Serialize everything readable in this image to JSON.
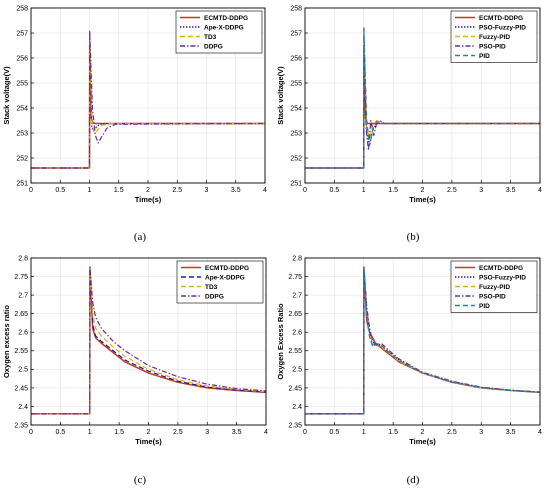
{
  "chart_data": [
    {
      "panel": "(a)",
      "type": "line",
      "xlabel": "Time(s)",
      "ylabel": "Stack voltage(V)",
      "xlim": [
        0,
        4
      ],
      "ylim": [
        251,
        258
      ],
      "xticks": [
        0,
        0.5,
        1,
        1.5,
        2,
        2.5,
        3,
        3.5,
        4
      ],
      "yticks": [
        251,
        252,
        253,
        254,
        255,
        256,
        257,
        258
      ],
      "grid": true,
      "legend_position": "top-right",
      "series": [
        {
          "name": "ECMTD-DDPG",
          "color": "#c0392b",
          "dash": "solid",
          "x": [
            0,
            1,
            1.003,
            1.03,
            1.06,
            1.1,
            1.15,
            1.3,
            4
          ],
          "y": [
            251.6,
            251.6,
            256.5,
            253.6,
            253.4,
            253.38,
            253.38,
            253.38,
            253.38
          ]
        },
        {
          "name": "Ape-X-DDPG",
          "color": "#1a1aa8",
          "dash": "dot",
          "x": [
            0,
            1,
            1.003,
            1.04,
            1.08,
            1.12,
            1.18,
            1.3,
            4
          ],
          "y": [
            251.6,
            251.6,
            256.8,
            253.2,
            253.1,
            253.25,
            253.35,
            253.38,
            253.38
          ]
        },
        {
          "name": "TD3",
          "color": "#e0b000",
          "dash": "dash",
          "x": [
            0,
            1,
            1.003,
            1.04,
            1.08,
            1.13,
            1.2,
            1.35,
            4
          ],
          "y": [
            251.6,
            251.6,
            257.0,
            253.5,
            253.0,
            253.1,
            253.3,
            253.38,
            253.38
          ]
        },
        {
          "name": "DDPG",
          "color": "#6a2a9a",
          "dash": "dashdot",
          "x": [
            0,
            1,
            1.003,
            1.05,
            1.1,
            1.15,
            1.22,
            1.3,
            1.45,
            4
          ],
          "y": [
            251.6,
            251.6,
            257.1,
            254.0,
            252.9,
            252.6,
            252.9,
            253.2,
            253.35,
            253.38
          ]
        }
      ]
    },
    {
      "panel": "(b)",
      "type": "line",
      "xlabel": "Time(s)",
      "ylabel": "Stack voltage(V)",
      "xlim": [
        0,
        4
      ],
      "ylim": [
        251,
        258
      ],
      "xticks": [
        0,
        0.5,
        1,
        1.5,
        2,
        2.5,
        3,
        3.5,
        4
      ],
      "yticks": [
        251,
        252,
        253,
        254,
        255,
        256,
        257,
        258
      ],
      "grid": true,
      "legend_position": "top-right",
      "series": [
        {
          "name": "ECMTD-DDPG",
          "color": "#c0392b",
          "dash": "solid",
          "x": [
            0,
            1,
            1.003,
            1.03,
            1.06,
            1.1,
            4
          ],
          "y": [
            251.6,
            251.6,
            256.5,
            253.6,
            253.38,
            253.38,
            253.38
          ]
        },
        {
          "name": "PSO-Fuzzy-PID",
          "color": "#1a1aa8",
          "dash": "dot",
          "x": [
            0,
            1,
            1.003,
            1.05,
            1.1,
            1.15,
            1.2,
            1.27,
            1.35,
            4
          ],
          "y": [
            251.6,
            251.6,
            256.9,
            253.0,
            252.5,
            253.1,
            253.3,
            253.5,
            253.38,
            253.38
          ]
        },
        {
          "name": "Fuzzy-PID",
          "color": "#e0b000",
          "dash": "dash",
          "x": [
            0,
            1,
            1.003,
            1.05,
            1.1,
            1.15,
            1.22,
            1.3,
            4
          ],
          "y": [
            251.6,
            251.6,
            256.6,
            253.2,
            252.8,
            253.3,
            253.5,
            253.38,
            253.38
          ]
        },
        {
          "name": "PSO-PID",
          "color": "#6a2a9a",
          "dash": "dashdot",
          "x": [
            0,
            1,
            1.003,
            1.04,
            1.08,
            1.12,
            1.17,
            1.22,
            1.3,
            4
          ],
          "y": [
            251.6,
            251.6,
            257.2,
            253.2,
            252.3,
            253.5,
            252.9,
            253.4,
            253.38,
            253.38
          ]
        },
        {
          "name": "PID",
          "color": "#1a8a9a",
          "dash": "dash",
          "x": [
            0,
            1,
            1.003,
            1.05,
            1.1,
            1.16,
            1.22,
            1.3,
            4
          ],
          "y": [
            251.6,
            251.6,
            257.0,
            253.5,
            252.5,
            253.2,
            253.45,
            253.38,
            253.38
          ]
        }
      ]
    },
    {
      "panel": "(c)",
      "type": "line",
      "xlabel": "Time(s)",
      "ylabel": "Oxygen excess ratio",
      "xlim": [
        0,
        4
      ],
      "ylim": [
        2.35,
        2.8
      ],
      "xticks": [
        0,
        0.5,
        1,
        1.5,
        2,
        2.5,
        3,
        3.5,
        4
      ],
      "yticks": [
        2.35,
        2.4,
        2.45,
        2.5,
        2.55,
        2.6,
        2.65,
        2.7,
        2.75,
        2.8
      ],
      "grid": true,
      "legend_position": "top-right",
      "series": [
        {
          "name": "ECMTD-DDPG",
          "color": "#c0392b",
          "dash": "solid",
          "x": [
            0,
            1,
            1.003,
            1.05,
            1.1,
            1.2,
            1.4,
            1.6,
            2,
            2.5,
            3,
            3.5,
            4
          ],
          "y": [
            2.38,
            2.38,
            2.775,
            2.61,
            2.585,
            2.57,
            2.545,
            2.52,
            2.49,
            2.465,
            2.45,
            2.443,
            2.438
          ]
        },
        {
          "name": "Ape-X-DDPG",
          "color": "#1a1aa8",
          "dash": "dash",
          "x": [
            0,
            1,
            1.003,
            1.05,
            1.1,
            1.2,
            1.4,
            1.6,
            2,
            2.5,
            3,
            3.5,
            4
          ],
          "y": [
            2.38,
            2.38,
            2.775,
            2.62,
            2.59,
            2.575,
            2.55,
            2.525,
            2.495,
            2.468,
            2.452,
            2.444,
            2.439
          ]
        },
        {
          "name": "TD3",
          "color": "#e0b000",
          "dash": "dash",
          "x": [
            0,
            1,
            1.003,
            1.05,
            1.1,
            1.2,
            1.4,
            1.6,
            2,
            2.5,
            3,
            3.5,
            4
          ],
          "y": [
            2.38,
            2.38,
            2.775,
            2.65,
            2.61,
            2.59,
            2.56,
            2.535,
            2.5,
            2.472,
            2.455,
            2.446,
            2.44
          ]
        },
        {
          "name": "DDPG",
          "color": "#6a2a9a",
          "dash": "dashdot",
          "x": [
            0,
            1,
            1.003,
            1.05,
            1.1,
            1.2,
            1.4,
            1.6,
            2,
            2.5,
            3,
            3.5,
            4
          ],
          "y": [
            2.38,
            2.38,
            2.775,
            2.68,
            2.64,
            2.61,
            2.575,
            2.55,
            2.51,
            2.48,
            2.46,
            2.448,
            2.442
          ]
        }
      ]
    },
    {
      "panel": "(d)",
      "type": "line",
      "xlabel": "Time(s)",
      "ylabel": "Oxygen Excess Ratio",
      "xlim": [
        0,
        4
      ],
      "ylim": [
        2.35,
        2.8
      ],
      "xticks": [
        0,
        0.5,
        1,
        1.5,
        2,
        2.5,
        3,
        3.5,
        4
      ],
      "yticks": [
        2.35,
        2.4,
        2.45,
        2.5,
        2.55,
        2.6,
        2.65,
        2.7,
        2.75,
        2.8
      ],
      "grid": true,
      "legend_position": "top-right",
      "series": [
        {
          "name": "ECMTD-DDPG",
          "color": "#c0392b",
          "dash": "solid",
          "x": [
            0,
            1,
            1.003,
            1.05,
            1.1,
            1.2,
            1.4,
            1.6,
            2,
            2.5,
            3,
            3.5,
            4
          ],
          "y": [
            2.38,
            2.38,
            2.775,
            2.63,
            2.6,
            2.57,
            2.545,
            2.52,
            2.49,
            2.465,
            2.45,
            2.443,
            2.438
          ]
        },
        {
          "name": "PSO-Fuzzy-PID",
          "color": "#1a1aa8",
          "dash": "dot",
          "x": [
            0,
            1,
            1.003,
            1.05,
            1.1,
            1.15,
            1.2,
            1.28,
            1.4,
            1.6,
            2,
            2.5,
            3,
            3.5,
            4
          ],
          "y": [
            2.38,
            2.38,
            2.775,
            2.66,
            2.6,
            2.565,
            2.57,
            2.565,
            2.55,
            2.525,
            2.49,
            2.467,
            2.451,
            2.444,
            2.438
          ]
        },
        {
          "name": "Fuzzy-PID",
          "color": "#e0b000",
          "dash": "dash",
          "x": [
            0,
            1,
            1.003,
            1.05,
            1.1,
            1.15,
            1.2,
            1.3,
            1.4,
            1.6,
            2,
            2.5,
            3,
            3.5,
            4
          ],
          "y": [
            2.38,
            2.38,
            2.775,
            2.65,
            2.59,
            2.56,
            2.565,
            2.56,
            2.548,
            2.522,
            2.49,
            2.466,
            2.45,
            2.443,
            2.438
          ]
        },
        {
          "name": "PSO-PID",
          "color": "#6a2a9a",
          "dash": "dashdot",
          "x": [
            0,
            1,
            1.003,
            1.05,
            1.1,
            1.15,
            1.22,
            1.3,
            1.4,
            1.6,
            2,
            2.5,
            3,
            3.5,
            4
          ],
          "y": [
            2.38,
            2.38,
            2.775,
            2.67,
            2.61,
            2.575,
            2.565,
            2.57,
            2.555,
            2.528,
            2.492,
            2.468,
            2.452,
            2.444,
            2.439
          ]
        },
        {
          "name": "PID",
          "color": "#1a8a9a",
          "dash": "dash",
          "x": [
            0,
            1,
            1.003,
            1.05,
            1.1,
            1.16,
            1.22,
            1.3,
            1.4,
            1.6,
            2,
            2.5,
            3,
            3.5,
            4
          ],
          "y": [
            2.38,
            2.38,
            2.775,
            2.64,
            2.585,
            2.56,
            2.57,
            2.565,
            2.55,
            2.524,
            2.49,
            2.466,
            2.45,
            2.443,
            2.438
          ]
        }
      ]
    }
  ]
}
